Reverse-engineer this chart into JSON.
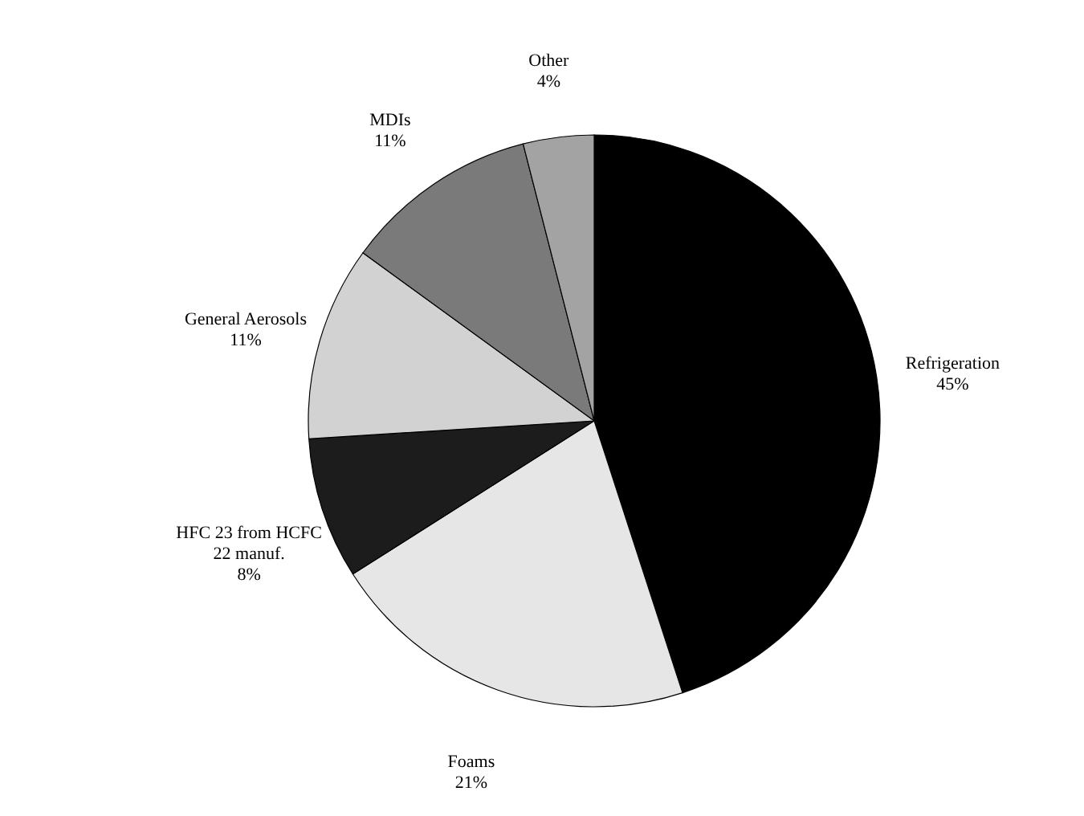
{
  "chart_data": {
    "type": "pie",
    "categories": [
      "Refrigeration",
      "Foams",
      "HFC 23 from HCFC\n22 manuf.",
      "General Aerosols",
      "MDIs",
      "Other"
    ],
    "values": [
      45,
      21,
      8,
      11,
      11,
      4
    ],
    "colors": [
      "#000000",
      "#e6e6e6",
      "#1c1c1c",
      "#d2d2d2",
      "#7a7a7a",
      "#a3a3a3"
    ],
    "value_labels": [
      "45%",
      "21%",
      "8%",
      "11%",
      "11%",
      "4%"
    ]
  }
}
